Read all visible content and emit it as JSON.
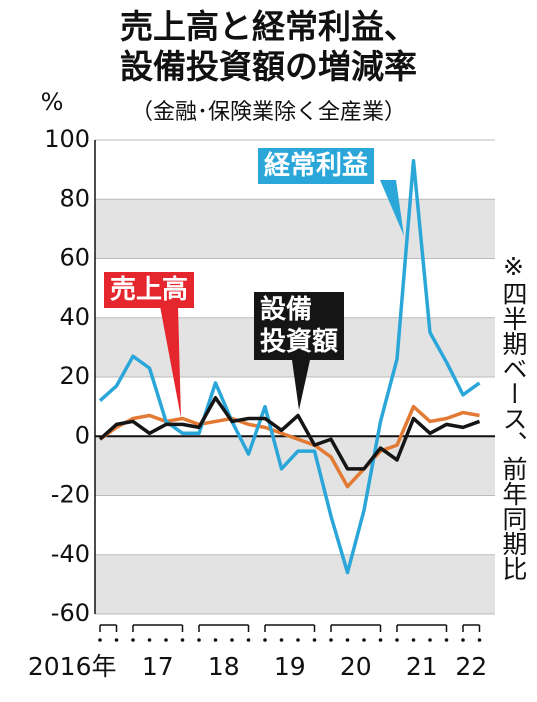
{
  "chart_data": {
    "type": "line",
    "title": [
      "売上高と経常利益、",
      "設備投資額の増減率"
    ],
    "subtitle": "（金融･保険業除く全産業）",
    "y_unit": "%",
    "note": "※四半期ベース、前年同期比",
    "categories": [
      "2016年",
      null,
      "17",
      null,
      null,
      null,
      "18",
      null,
      null,
      null,
      "19",
      null,
      null,
      null,
      "20",
      null,
      null,
      null,
      "21",
      null,
      null,
      null,
      "22",
      null
    ],
    "ylim": [
      -60,
      100
    ],
    "yticks": [
      100,
      80,
      60,
      40,
      20,
      0,
      -20,
      -40,
      -60
    ],
    "grid": true,
    "series": [
      {
        "name": "経常利益",
        "color": "#2ba6d9",
        "values": [
          12,
          17,
          27,
          23,
          5,
          1,
          1,
          18,
          5,
          -6,
          10,
          -11,
          -5,
          -5,
          -27,
          -46,
          -25,
          5,
          26,
          93,
          35,
          25,
          14,
          18
        ]
      },
      {
        "name": "売上高",
        "color": "#e27a34",
        "values": [
          -1,
          3,
          6,
          7,
          5,
          6,
          4,
          5,
          6,
          4,
          3,
          1,
          -1,
          -3,
          -7,
          -17,
          -11,
          -5,
          -3,
          10,
          5,
          6,
          8,
          7
        ]
      },
      {
        "name": "設備\n投資額",
        "color": "#151515",
        "values": [
          -1,
          4,
          5,
          1,
          4,
          4,
          3,
          13,
          5,
          6,
          6,
          2,
          7,
          -3,
          -1,
          -11,
          -11,
          -4,
          -8,
          6,
          1,
          4,
          3,
          5
        ]
      }
    ]
  }
}
